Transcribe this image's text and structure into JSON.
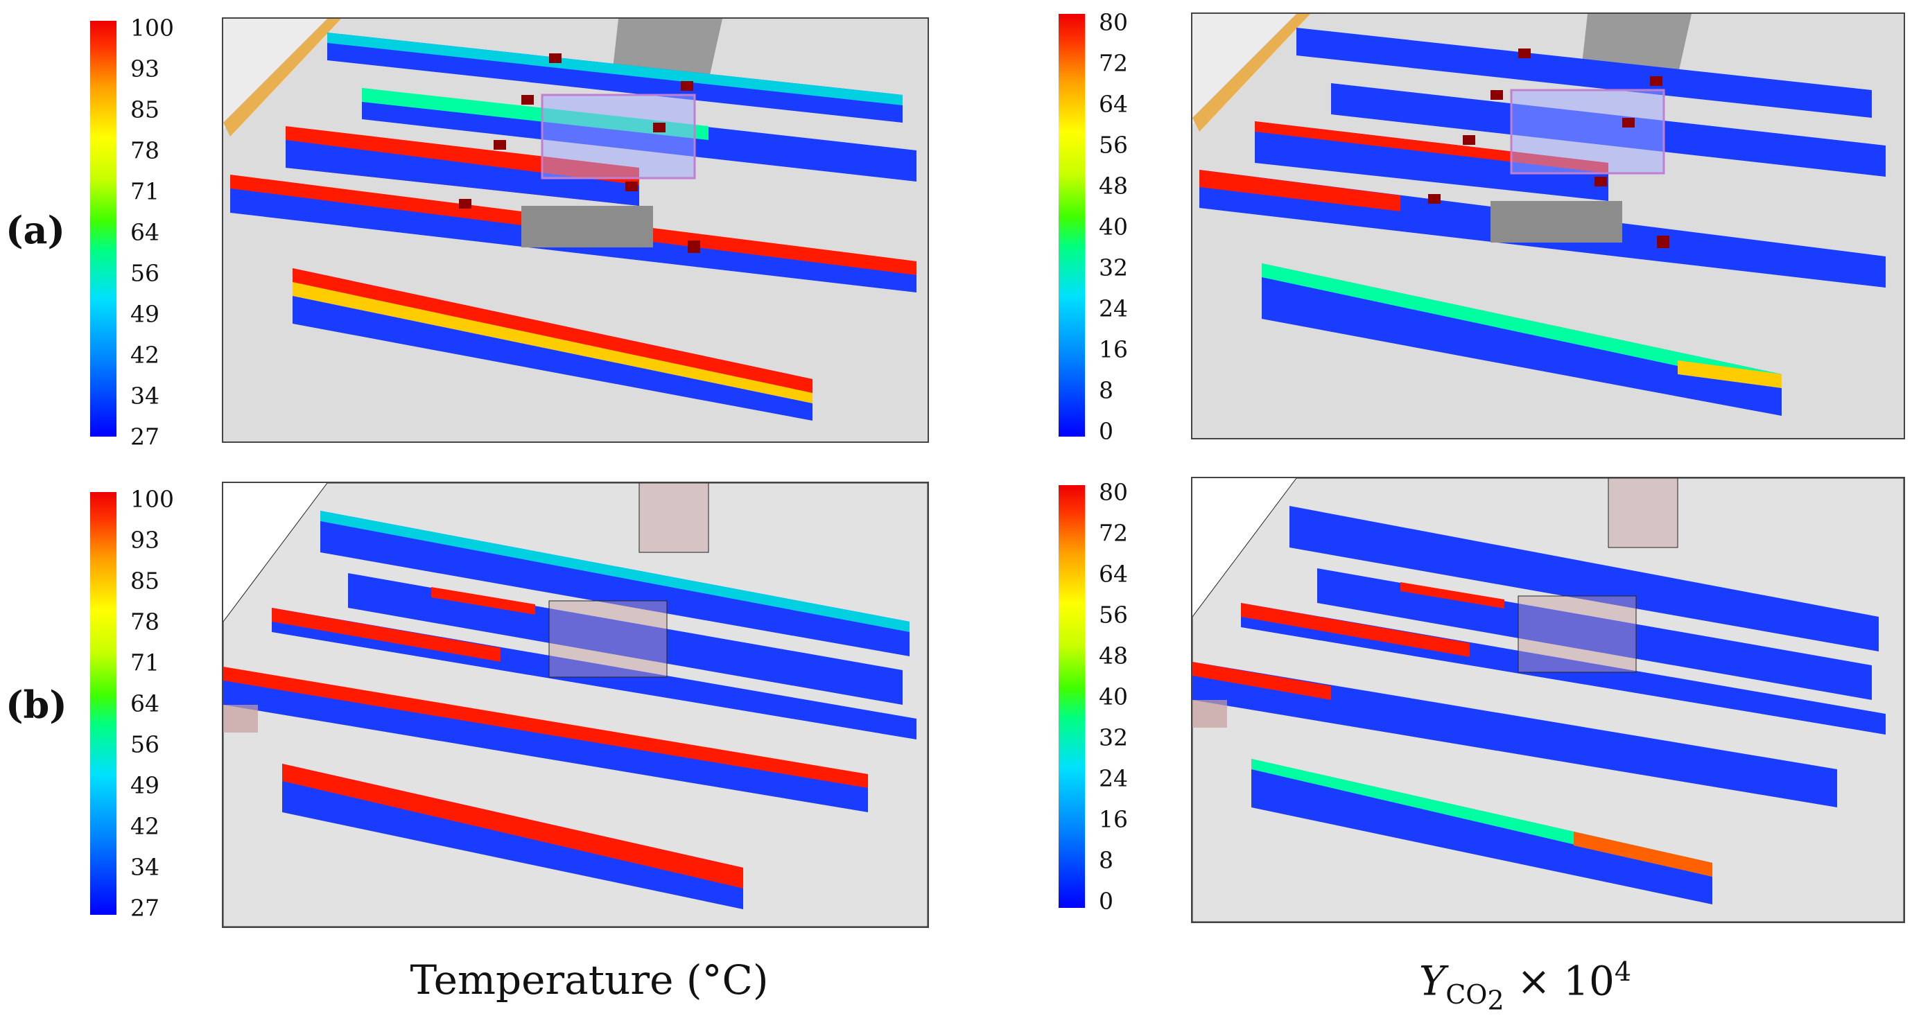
{
  "rows": [
    {
      "label": "(a)"
    },
    {
      "label": "(b)"
    }
  ],
  "colorbars": {
    "temperature": {
      "ticks": [
        "100",
        "93",
        "85",
        "78",
        "71",
        "64",
        "56",
        "49",
        "42",
        "34",
        "27"
      ]
    },
    "co2": {
      "ticks": [
        "80",
        "72",
        "64",
        "56",
        "48",
        "40",
        "32",
        "24",
        "16",
        "8",
        "0"
      ]
    }
  },
  "captions": {
    "temperature": "Temperature (°C)",
    "co2_var": "Y",
    "co2_sub": "CO",
    "co2_sub2": "2",
    "co2_times": "× 10",
    "co2_exp": "4"
  },
  "colors": {
    "cold": "#1a3cff",
    "hot": "#ff1a00",
    "mid": "#00e0c0"
  }
}
